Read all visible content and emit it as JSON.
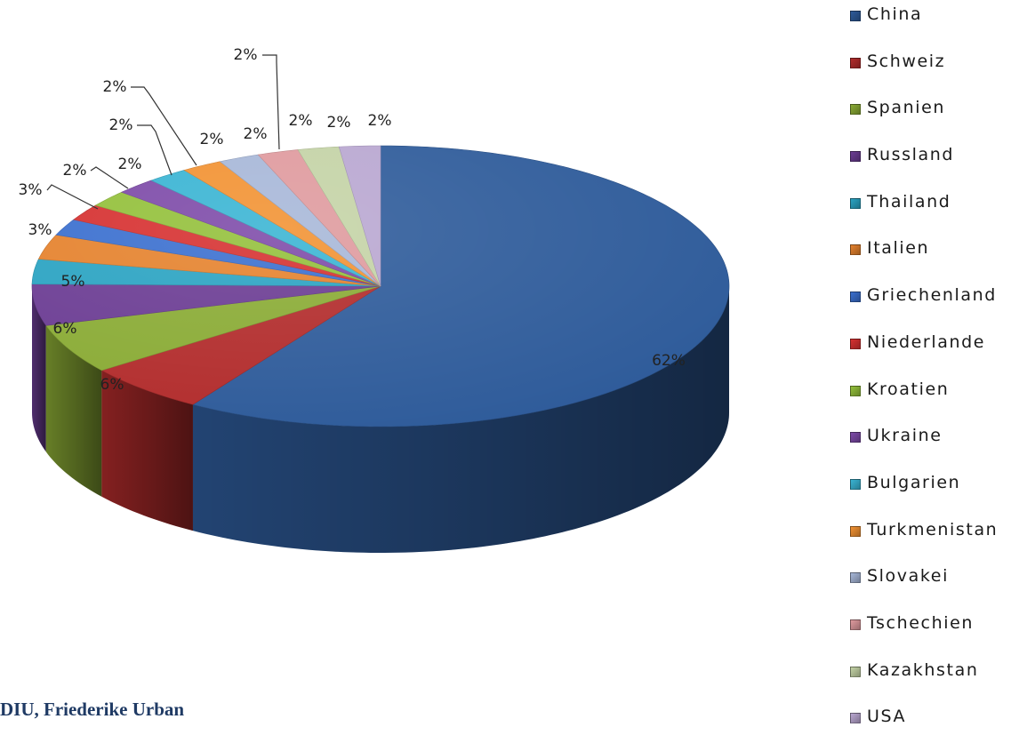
{
  "chart_data": {
    "type": "pie",
    "title": "",
    "categories": [
      "China",
      "Schweiz",
      "Spanien",
      "Russland",
      "Thailand",
      "Italien",
      "Griechenland",
      "Niederlande",
      "Kroatien",
      "Ukraine",
      "Bulgarien",
      "Turkmenistan",
      "Slovakei",
      "Tschechien",
      "Kazakhstan",
      "USA"
    ],
    "values": [
      62,
      6,
      6,
      5,
      3,
      3,
      2,
      2,
      2,
      2,
      2,
      2,
      2,
      2,
      2,
      2
    ],
    "value_labels": [
      "62%",
      "6%",
      "6%",
      "5%",
      "3%",
      "3%",
      "2%",
      "2%",
      "2%",
      "2%",
      "2%",
      "2%",
      "2%",
      "2%",
      "2%",
      "2%"
    ],
    "colors": [
      "#2e5b9a",
      "#b22c2c",
      "#8aab35",
      "#6b3c93",
      "#2aa3c2",
      "#e5822d",
      "#3a6fcf",
      "#d63030",
      "#93c03a",
      "#7d4aa8",
      "#39b4d3",
      "#f29232",
      "#a7b7d8",
      "#df9a9e",
      "#c4d3a6",
      "#b9a7d1"
    ],
    "legend_position": "right",
    "style": "3d-exploded-pie",
    "legend": [
      "China",
      "Schweiz",
      "Spanien",
      "Russland",
      "Thailand",
      "Italien",
      "Griechenland",
      "Niederlande",
      "Kroatien",
      "Ukraine",
      "Bulgarien",
      "Turkmenistan",
      "Slovakei",
      "Tschechien",
      "Kazakhstan",
      "USA"
    ]
  },
  "footer": {
    "credit": "DIU, Friederike Urban"
  }
}
